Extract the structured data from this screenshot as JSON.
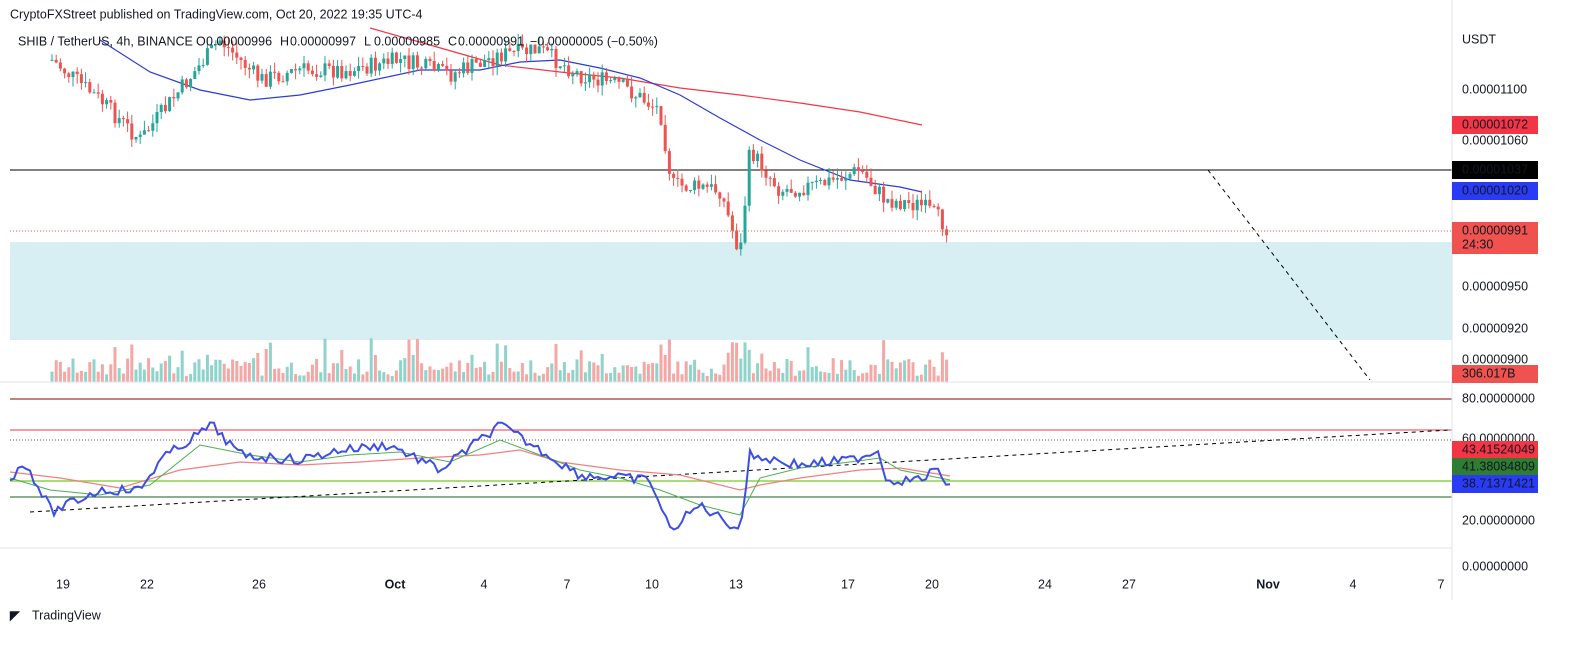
{
  "header": {
    "publisher": "CryptoFXStreet published on TradingView.com, Oct 20, 2022 19:35 UTC-4",
    "symbol": "SHIB / TetherUS, 4h, BINANCE",
    "ohlc": [
      {
        "key": "O",
        "value": "0.00000996"
      },
      {
        "key": "H",
        "value": "0.00000997"
      },
      {
        "key": "L",
        "value": "0.00000985"
      },
      {
        "key": "C",
        "value": "0.00000991"
      }
    ],
    "change": "−0.00000005 (−0.50%)"
  },
  "price_axis": {
    "currency": "USDT",
    "labels": [
      "0.00001100",
      "0.00001060",
      "0.00000950",
      "0.00000920",
      "0.00000900"
    ],
    "badges": [
      "0.00001072",
      "0.00001037",
      "0.00001020",
      "0.00000991"
    ],
    "countdown": "24:30",
    "volume": "306.017B"
  },
  "rsi_axis": {
    "labels": [
      "80.00000000",
      "60.00000000",
      "20.00000000",
      "0.00000000"
    ],
    "badges": [
      "43.41524049",
      "41.38084809",
      "38.71371421"
    ]
  },
  "time_axis": {
    "labels": [
      "19",
      "22",
      "26",
      "Oct",
      "4",
      "7",
      "10",
      "13",
      "17",
      "20",
      "24",
      "27",
      "Nov",
      "4",
      "7"
    ]
  },
  "footer": {
    "brand": "TradingView"
  }
}
